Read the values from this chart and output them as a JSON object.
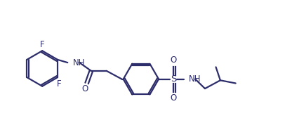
{
  "bg_color": "#ffffff",
  "bond_color": "#2d2d6b",
  "text_color": "#2d2d6b",
  "line_width": 1.6,
  "font_size": 8.5,
  "fig_width": 4.27,
  "fig_height": 1.95,
  "xlim": [
    -0.3,
    9.8
  ],
  "ylim": [
    -1.5,
    2.5
  ]
}
